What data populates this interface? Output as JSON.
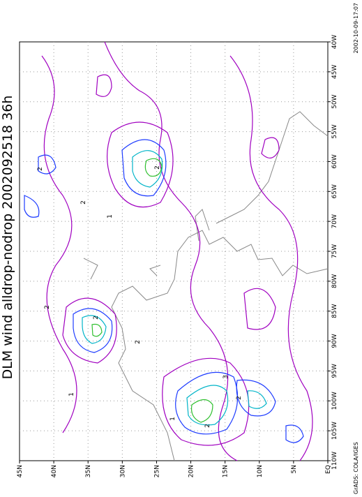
{
  "title": "DLM wind alldrop-nodrop 2002092518 36h",
  "timestamp": "2002-10-09-17:07",
  "credit": "GrADS: COLA/IGES",
  "lat_labels": [
    "EQ",
    "5N",
    "10N",
    "15N",
    "20N",
    "25N",
    "30N",
    "35N",
    "40N",
    "45N"
  ],
  "lon_labels": [
    "40W",
    "45W",
    "50W",
    "55W",
    "60W",
    "65W",
    "70W",
    "75W",
    "80W",
    "85W",
    "90W",
    "95W",
    "100W",
    "105W",
    "110W"
  ],
  "contour_labels": [
    "2",
    "2",
    "2",
    "2",
    "1",
    "2",
    "2",
    "3",
    "2",
    "2",
    "1",
    "1"
  ]
}
